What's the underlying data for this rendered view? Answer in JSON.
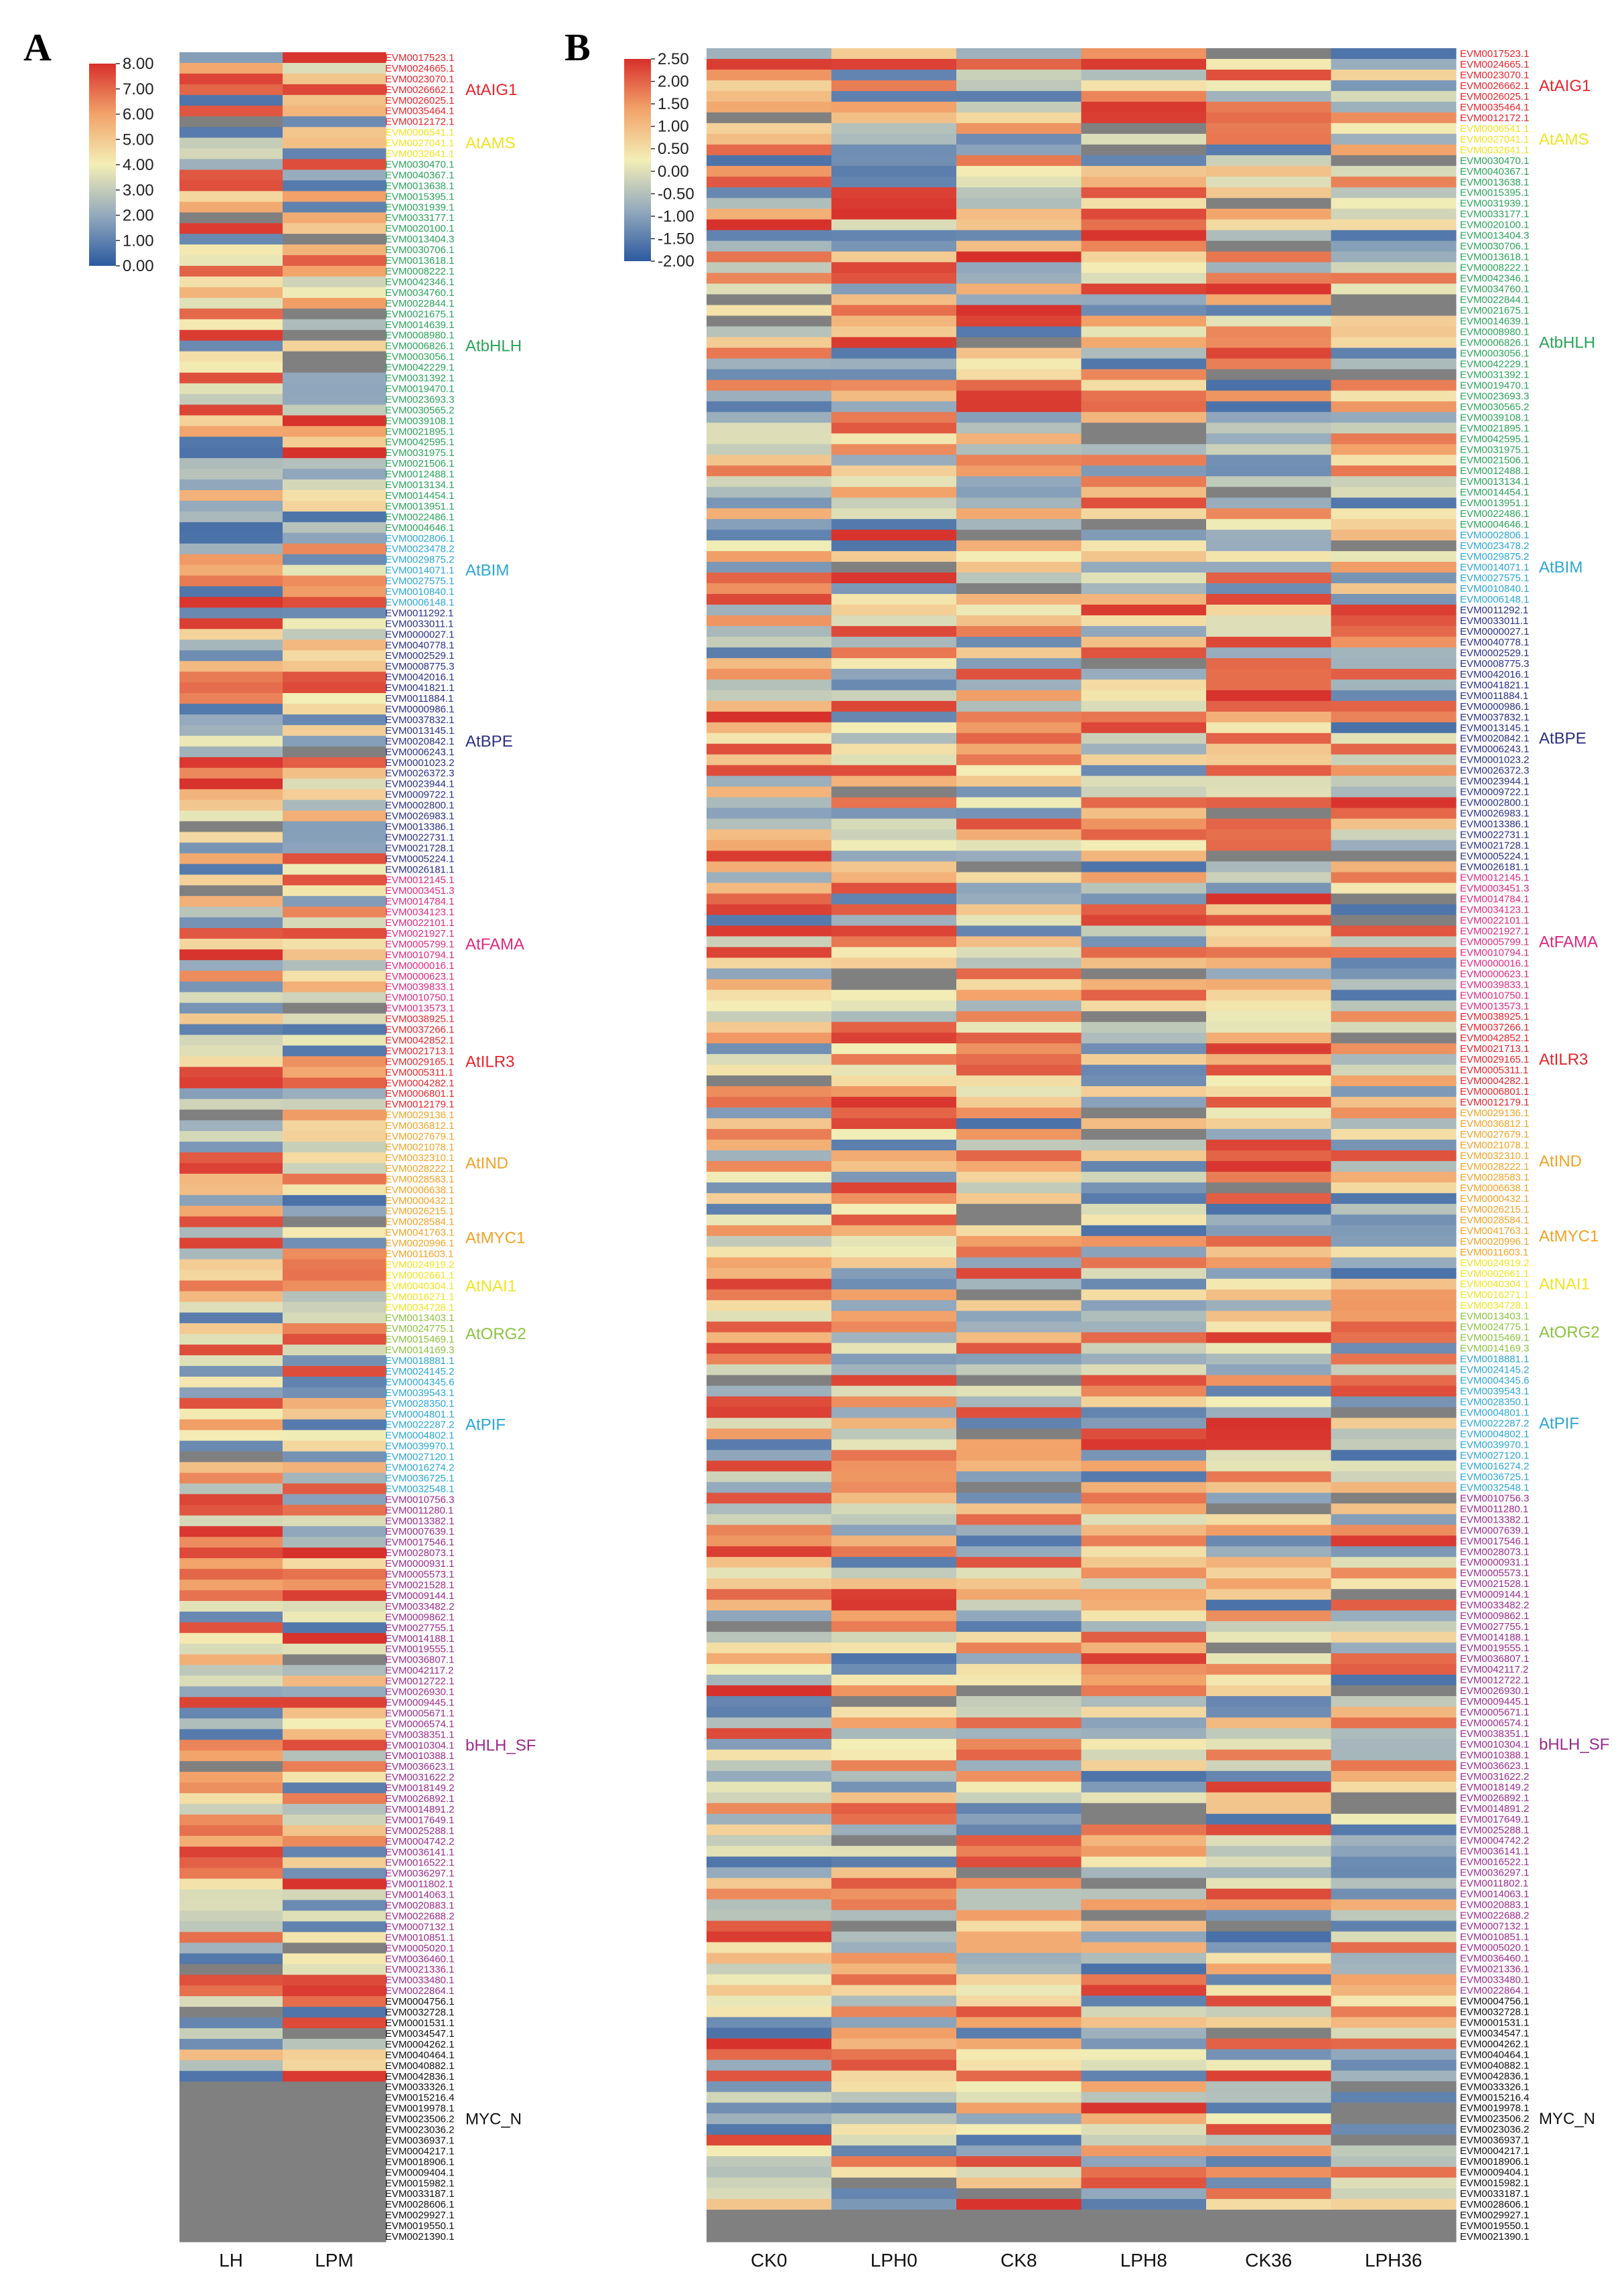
{
  "panels": [
    {
      "letter": "A",
      "columns": [
        "LH",
        "LPM"
      ],
      "colorbar": {
        "min": 0.0,
        "max": 8.0,
        "ticks": [
          "8.00",
          "7.00",
          "6.00",
          "5.00",
          "4.00",
          "3.00",
          "2.00",
          "1.00",
          "0.00"
        ]
      },
      "family_labels": [
        "AtAIG1",
        "AtAMS",
        "AtbHLH",
        "AtBIM",
        "AtBPE",
        "AtFAMA",
        "AtILR3",
        "AtIND",
        "AtMYC1",
        "AtNAI1",
        "AtORG2",
        "AtPIF",
        "bHLH_SF",
        "MYC_N"
      ]
    },
    {
      "letter": "B",
      "columns": [
        "CK0",
        "LPH0",
        "CK8",
        "LPH8",
        "CK36",
        "LPH36"
      ],
      "colorbar": {
        "min": -2.0,
        "max": 2.5,
        "ticks": [
          "2.50",
          "2.00",
          "1.50",
          "1.00",
          "0.50",
          "0.00",
          "-0.50",
          "-1.00",
          "-1.50",
          "-2.00"
        ]
      },
      "family_labels": [
        "AtAIG1",
        "AtAMS",
        "AtbHLH",
        "AtBIM",
        "AtBPE",
        "AtFAMA",
        "AtILR3",
        "AtIND",
        "AtMYC1",
        "AtNAI1",
        "AtORG2",
        "AtPIF",
        "bHLH_SF",
        "MYC_N"
      ]
    }
  ],
  "chart_data": {
    "type": "heatmap",
    "colors": {
      "low": "#2c5aa0",
      "mid_low": "#93a9bd",
      "mid": "#f3eeb6",
      "mid_high": "#f2a36a",
      "high": "#d7302b",
      "na": "#808080",
      "family_colors": {
        "AtAIG1": "#e8242d",
        "AtAMS": "#f2e322",
        "AtbHLH": "#2aa35a",
        "AtBIM": "#2aa6d8",
        "AtBPE": "#2b2f86",
        "AtFAMA": "#e0287d",
        "AtILR3": "#e8242d",
        "AtIND": "#f3a225",
        "AtMYC1": "#f3a225",
        "AtNAI1": "#f2e322",
        "AtORG2": "#8cc23f",
        "AtPIF": "#2aa6d8",
        "bHLH_SF": "#9b2b8e",
        "MYC_N": "#111111"
      }
    },
    "families": [
      {
        "name": "AtAIG1",
        "rows": [
          "EVM0017523.1",
          "EVM0024665.1",
          "EVM0023070.1",
          "EVM0026662.1",
          "EVM0026025.1",
          "EVM0035464.1",
          "EVM0012172.1"
        ]
      },
      {
        "name": "AtAMS",
        "rows": [
          "EVM0006541.1",
          "EVM0027041.1",
          "EVM0032641.1"
        ]
      },
      {
        "name": "AtbHLH",
        "rows": [
          "EVM0030470.1",
          "EVM0040367.1",
          "EVM0013638.1",
          "EVM0015395.1",
          "EVM0031939.1",
          "EVM0033177.1",
          "EVM0020100.1",
          "EVM0013404.3",
          "EVM0030706.1",
          "EVM0013618.1",
          "EVM0008222.1",
          "EVM0042346.1",
          "EVM0034760.1",
          "EVM0022844.1",
          "EVM0021675.1",
          "EVM0014639.1",
          "EVM0008980.1",
          "EVM0006826.1",
          "EVM0003056.1",
          "EVM0042229.1",
          "EVM0031392.1",
          "EVM0019470.1",
          "EVM0023693.3",
          "EVM0030565.2",
          "EVM0039108.1",
          "EVM0021895.1",
          "EVM0042595.1",
          "EVM0031975.1",
          "EVM0021506.1",
          "EVM0012488.1",
          "EVM0013134.1",
          "EVM0014454.1",
          "EVM0013951.1",
          "EVM0022486.1",
          "EVM0004646.1"
        ]
      },
      {
        "name": "AtBIM",
        "rows": [
          "EVM0002806.1",
          "EVM0023478.2",
          "EVM0029875.2",
          "EVM0014071.1",
          "EVM0027575.1",
          "EVM0010840.1",
          "EVM0006148.1"
        ]
      },
      {
        "name": "AtBPE",
        "rows": [
          "EVM0011292.1",
          "EVM0033011.1",
          "EVM0000027.1",
          "EVM0040778.1",
          "EVM0002529.1",
          "EVM0008775.3",
          "EVM0042016.1",
          "EVM0041821.1",
          "EVM0011884.1",
          "EVM0000986.1",
          "EVM0037832.1",
          "EVM0013145.1",
          "EVM0020842.1",
          "EVM0006243.1",
          "EVM0001023.2",
          "EVM0026372.3",
          "EVM0023944.1",
          "EVM0009722.1",
          "EVM0002800.1",
          "EVM0026983.1",
          "EVM0013386.1",
          "EVM0022731.1",
          "EVM0021728.1",
          "EVM0005224.1",
          "EVM0026181.1"
        ]
      },
      {
        "name": "AtFAMA",
        "rows": [
          "EVM0012145.1",
          "EVM0003451.3",
          "EVM0014784.1",
          "EVM0034123.1",
          "EVM0022101.1",
          "EVM0021927.1",
          "EVM0005799.1",
          "EVM0010794.1",
          "EVM0000016.1",
          "EVM0000623.1",
          "EVM0039833.1",
          "EVM0010750.1",
          "EVM0013573.1"
        ]
      },
      {
        "name": "AtILR3",
        "rows": [
          "EVM0038925.1",
          "EVM0037266.1",
          "EVM0042852.1",
          "EVM0021713.1",
          "EVM0029165.1",
          "EVM0005311.1",
          "EVM0004282.1",
          "EVM0006801.1",
          "EVM0012179.1"
        ]
      },
      {
        "name": "AtIND",
        "rows": [
          "EVM0029136.1",
          "EVM0036812.1",
          "EVM0027679.1",
          "EVM0021078.1",
          "EVM0032310.1",
          "EVM0028222.1",
          "EVM0028583.1",
          "EVM0006638.1",
          "EVM0000432.1",
          "EVM0026215.1"
        ]
      },
      {
        "name": "AtMYC1",
        "rows": [
          "EVM0028584.1",
          "EVM0041763.1",
          "EVM0020996.1",
          "EVM0011603.1"
        ]
      },
      {
        "name": "AtNAI1",
        "rows": [
          "EVM0024919.2",
          "EVM0002661.1",
          "EVM0040304.1",
          "EVM0016271.1",
          "EVM0034728.1"
        ]
      },
      {
        "name": "AtORG2",
        "rows": [
          "EVM0013403.1",
          "EVM0024775.1",
          "EVM0015469.1",
          "EVM0014169.3"
        ]
      },
      {
        "name": "AtPIF",
        "rows": [
          "EVM0018881.1",
          "EVM0024145.2",
          "EVM0004345.6",
          "EVM0039543.1",
          "EVM0028350.1",
          "EVM0004801.1",
          "EVM0022287.2",
          "EVM0004802.1",
          "EVM0039970.1",
          "EVM0027120.1",
          "EVM0016274.2",
          "EVM0036725.1",
          "EVM0032548.1"
        ]
      },
      {
        "name": "bHLH_SF",
        "rows": [
          "EVM0010756.3",
          "EVM0011280.1",
          "EVM0013382.1",
          "EVM0007639.1",
          "EVM0017546.1",
          "EVM0028073.1",
          "EVM0000931.1",
          "EVM0005573.1",
          "EVM0021528.1",
          "EVM0009144.1",
          "EVM0033482.2",
          "EVM0009862.1",
          "EVM0027755.1",
          "EVM0014188.1",
          "EVM0019555.1",
          "EVM0036807.1",
          "EVM0042117.2",
          "EVM0012722.1",
          "EVM0026930.1",
          "EVM0009445.1",
          "EVM0005671.1",
          "EVM0006574.1",
          "EVM0038351.1",
          "EVM0010304.1",
          "EVM0010388.1",
          "EVM0036623.1",
          "EVM0031622.2",
          "EVM0018149.2",
          "EVM0026892.1",
          "EVM0014891.2",
          "EVM0017649.1",
          "EVM0025288.1",
          "EVM0004742.2",
          "EVM0036141.1",
          "EVM0016522.1",
          "EVM0036297.1",
          "EVM0011802.1",
          "EVM0014063.1",
          "EVM0020883.1",
          "EVM0022688.2",
          "EVM0007132.1",
          "EVM0010851.1",
          "EVM0005020.1",
          "EVM0036460.1",
          "EVM0021336.1",
          "EVM0033480.1",
          "EVM0022864.1"
        ]
      },
      {
        "name": "MYC_N",
        "rows": [
          "EVM0004756.1",
          "EVM0032728.1",
          "EVM0001531.1",
          "EVM0034547.1",
          "EVM0004262.1",
          "EVM0040464.1",
          "EVM0040882.1",
          "EVM0042836.1",
          "EVM0033326.1",
          "EVM0015216.4",
          "EVM0019978.1",
          "EVM0023506.2",
          "EVM0023036.2",
          "EVM0036937.1",
          "EVM0004217.1",
          "EVM0018906.1",
          "EVM0009404.1",
          "EVM0015982.1",
          "EVM0033187.1",
          "EVM0028606.1",
          "EVM0029927.1",
          "EVM0019550.1",
          "EVM0021390.1"
        ]
      }
    ],
    "na_ranges_A": [
      [
        190,
        243
      ]
    ],
    "na_ranges_B": [
      [
        202,
        222
      ],
      [
        224,
        227
      ]
    ]
  }
}
